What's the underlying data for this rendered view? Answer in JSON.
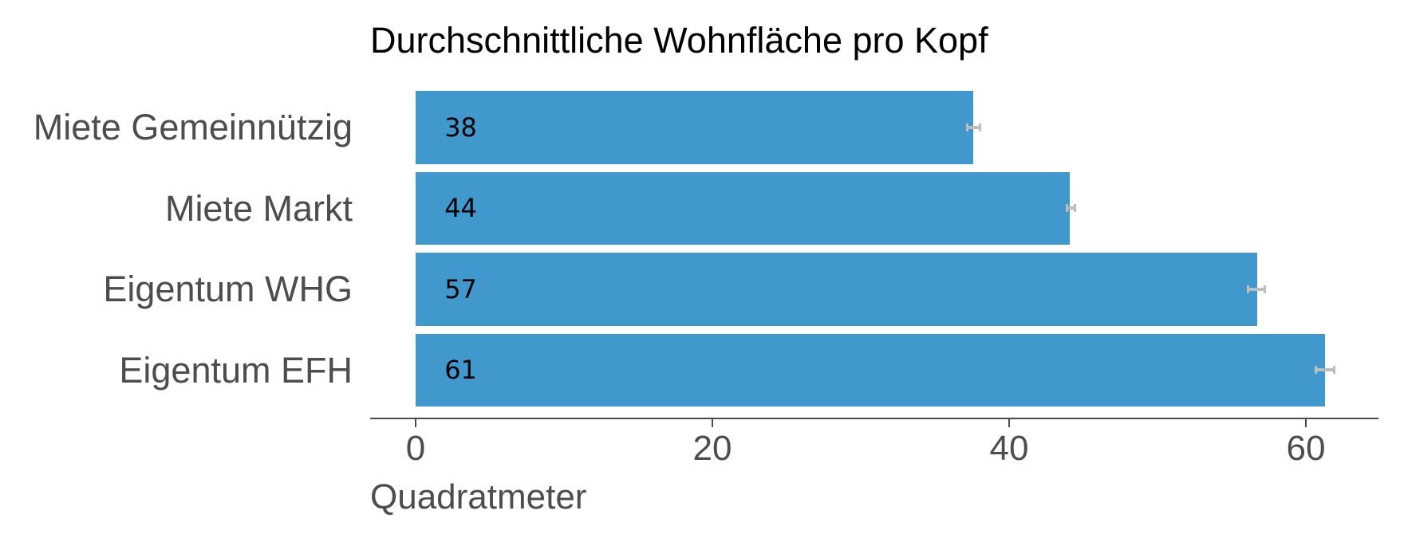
{
  "chart_data": {
    "type": "bar",
    "orientation": "horizontal",
    "title": "Durchschnittliche Wohnfläche pro Kopf",
    "xlabel": "Quadratmeter",
    "ylabel": "",
    "categories": [
      "Miete Gemeinnützig",
      "Miete Markt",
      "Eigentum WHG",
      "Eigentum EFH"
    ],
    "values": [
      37.6,
      44.1,
      56.7,
      61.3
    ],
    "value_labels": [
      "38",
      "44",
      "57",
      "61"
    ],
    "error_bars": [
      [
        37.1,
        38.1
      ],
      [
        43.8,
        44.5
      ],
      [
        56.0,
        57.3
      ],
      [
        60.6,
        62.0
      ]
    ],
    "xlim": [
      -3.06,
      64.9
    ],
    "xticks": [
      0,
      20,
      40,
      60
    ],
    "xtick_labels": [
      "0",
      "20",
      "40",
      "60"
    ],
    "grid": false,
    "legend": null,
    "colors": {
      "bar": "#4098CC",
      "error_bar": "#BDBDBD",
      "axis": "#4D4D4D",
      "axis_text": "#4D4D4D",
      "title": "#000000",
      "value_label": "#000000"
    }
  }
}
